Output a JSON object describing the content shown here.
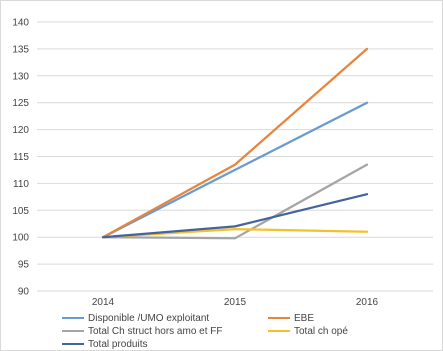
{
  "chart_data": {
    "type": "line",
    "title": "",
    "xlabel": "",
    "ylabel": "",
    "x": [
      "2014",
      "2015",
      "2016"
    ],
    "ylim": [
      90,
      140
    ],
    "y_ticks": [
      90,
      95,
      100,
      105,
      110,
      115,
      120,
      125,
      130,
      135,
      140
    ],
    "grid": true,
    "legend_position": "bottom",
    "series": [
      {
        "name": "Disponible /UMO exploitant",
        "values": [
          100,
          112.5,
          125
        ],
        "color": "#6A9ACF"
      },
      {
        "name": "EBE",
        "values": [
          100,
          113.5,
          135
        ],
        "color": "#E8843C"
      },
      {
        "name": "Total Ch struct hors amo et FF",
        "values": [
          100,
          99.8,
          113.5
        ],
        "color": "#A5A5A5"
      },
      {
        "name": "Total ch opé",
        "values": [
          100,
          101.5,
          101
        ],
        "color": "#F2C22C"
      },
      {
        "name": "Total produits",
        "values": [
          100,
          102,
          108
        ],
        "color": "#44649B"
      }
    ]
  }
}
